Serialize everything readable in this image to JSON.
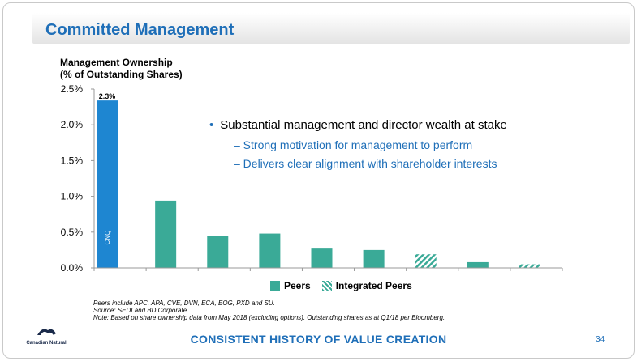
{
  "title": "Committed Management",
  "chart_label_line1": "Management Ownership",
  "chart_label_line2": "(% of Outstanding Shares)",
  "bullets": {
    "main": "Substantial management and director wealth at stake",
    "subs": [
      "– Strong motivation for management to perform",
      "– Delivers clear alignment with shareholder interests"
    ]
  },
  "legend": {
    "peers": "Peers",
    "integrated": "Integrated Peers"
  },
  "notes": [
    "Peers include APC, APA, CVE, DVN, ECA, EOG, PXD and SU.",
    "Source: SEDI and BD Corporate.",
    "Note: Based on share ownership data from May 2018 (excluding options). Outstanding shares as at Q1/18 per Bloomberg."
  ],
  "logo_text": "Canadian Natural",
  "footer": "CONSISTENT HISTORY OF VALUE CREATION",
  "page_number": "34",
  "chart_data": {
    "type": "bar",
    "ylim": [
      0,
      2.5
    ],
    "yticks": [
      "0.0%",
      "0.5%",
      "1.0%",
      "1.5%",
      "2.0%",
      "2.5%"
    ],
    "ytick_values": [
      0,
      0.5,
      1.0,
      1.5,
      2.0,
      2.5
    ],
    "bars": [
      {
        "value": 2.34,
        "kind": "cnq",
        "label": "CNQ",
        "data_label": "2.3%"
      },
      {
        "value": 0.94,
        "kind": "peer"
      },
      {
        "value": 0.45,
        "kind": "peer"
      },
      {
        "value": 0.48,
        "kind": "peer"
      },
      {
        "value": 0.27,
        "kind": "peer"
      },
      {
        "value": 0.25,
        "kind": "peer"
      },
      {
        "value": 0.19,
        "kind": "integrated"
      },
      {
        "value": 0.08,
        "kind": "peer"
      },
      {
        "value": 0.05,
        "kind": "integrated"
      }
    ],
    "colors": {
      "cnq": "#1e86d1",
      "peer": "#3aaa97"
    }
  }
}
